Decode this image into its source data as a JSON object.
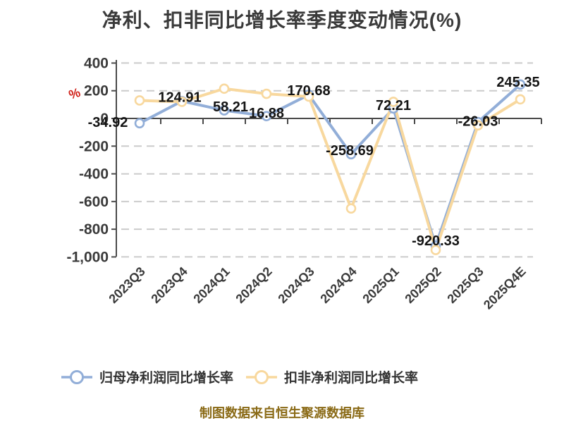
{
  "title": "净利、扣非同比增长率季度变动情况(%)",
  "y_axis_unit": "%",
  "footer": "制图数据来自恒生聚源数据库",
  "legend": [
    {
      "label": "归母净利润同比增长率",
      "color": "#92aed8"
    },
    {
      "label": "扣非净利润同比增长率",
      "color": "#f8d89e"
    }
  ],
  "colors": {
    "series_net_profit": "#92aed8",
    "series_deducted": "#f8d89e",
    "grid": "#cbcbcb",
    "axis": "#4a4a4a",
    "title_text": "#3a3a3a",
    "data_label": "#141414",
    "footer_text": "#8a6a16",
    "unit_label": "#d02018",
    "marker_fill": "#ffffff"
  },
  "chart_data": {
    "type": "line",
    "title": "净利、扣非同比增长率季度变动情况(%)",
    "xlabel": "",
    "ylabel": "%",
    "ylim": [
      -1000,
      400
    ],
    "grid": "horizontal-dashed",
    "legend_position": "bottom",
    "categories": [
      "2023Q3",
      "2023Q4",
      "2024Q1",
      "2024Q2",
      "2024Q3",
      "2024Q4",
      "2025Q1",
      "2025Q2",
      "2025Q3",
      "2025Q4E"
    ],
    "y_ticks": [
      400,
      200,
      0,
      -200,
      -400,
      -600,
      -800,
      -1000
    ],
    "y_tick_labels": [
      "400",
      "200",
      "0",
      "-200",
      "-400",
      "-600",
      "-800",
      "-1,000"
    ],
    "series": [
      {
        "name": "归母净利润同比增长率",
        "color": "#92aed8",
        "values": [
          -34.92,
          124.91,
          58.21,
          16.88,
          170.68,
          -258.69,
          72.21,
          -920.33,
          -26.03,
          245.35
        ],
        "point_labels": [
          "-34.92",
          "124.91",
          "58.21",
          "16.88",
          "170.68",
          "-258.69",
          "72.21",
          "-920.33",
          "-26.03",
          "245.35"
        ]
      },
      {
        "name": "扣非净利润同比增长率",
        "color": "#f8d89e",
        "values": [
          130,
          120,
          215,
          178,
          158,
          -650,
          120,
          -950,
          -50,
          138
        ],
        "point_labels": []
      }
    ]
  }
}
